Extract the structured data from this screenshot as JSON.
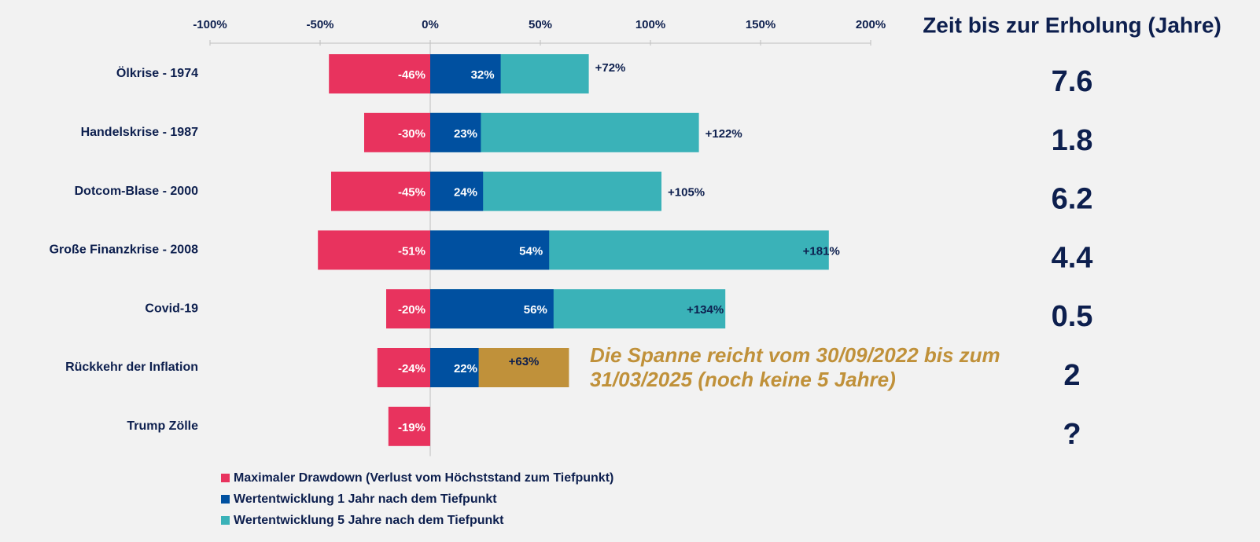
{
  "chart_data": {
    "type": "bar",
    "orientation": "horizontal",
    "categories": [
      "Ölkrise - 1974",
      "Handelskrise - 1987",
      "Dotcom-Blase - 2000",
      "Große Finanzkrise - 2008",
      "Covid-19",
      "Rückkehr der Inflation",
      "Trump Zölle"
    ],
    "series": [
      {
        "name": "Maximaler Drawdown (Verlust vom Höchststand zum Tiefpunkt)",
        "color": "#e8335e",
        "values": [
          -46,
          -30,
          -45,
          -51,
          -20,
          -24,
          -19
        ],
        "value_labels": [
          "-46%",
          "-30%",
          "-45%",
          "-51%",
          "-20%",
          "-24%",
          "-19%"
        ]
      },
      {
        "name": "Wertentwicklung 1 Jahr nach dem Tiefpunkt",
        "color": "#0050a0",
        "values": [
          32,
          23,
          24,
          54,
          56,
          22,
          null
        ],
        "value_labels": [
          "32%",
          "23%",
          "24%",
          "54%",
          "56%",
          "22%",
          null
        ]
      },
      {
        "name": "Wertentwicklung 5 Jahre nach dem Tiefpunkt",
        "color": "#3ab2b8",
        "colors": [
          "#3ab2b8",
          "#3ab2b8",
          "#3ab2b8",
          "#3ab2b8",
          "#3ab2b8",
          "#c0913a",
          "#3ab2b8"
        ],
        "values": [
          72,
          122,
          105,
          181,
          134,
          63,
          null
        ],
        "value_labels": [
          "+72%",
          "+122%",
          "+105%",
          "+181%",
          "+134%",
          "+63%",
          null
        ]
      }
    ],
    "xlim": [
      -100,
      200
    ],
    "xticks": [
      {
        "value": -100,
        "label": "-100%"
      },
      {
        "value": -50,
        "label": "-50%"
      },
      {
        "value": 0,
        "label": "0%"
      },
      {
        "value": 50,
        "label": "50%"
      },
      {
        "value": 100,
        "label": "100%"
      },
      {
        "value": 150,
        "label": "150%"
      },
      {
        "value": 200,
        "label": "200%"
      }
    ],
    "side_title": "Zeit bis zur Erholung (Jahre)",
    "side_values": [
      7.6,
      1.8,
      6.2,
      4.4,
      0.5,
      2,
      "?"
    ],
    "annotation": [
      "Die Spanne reicht vom 30/09/2022 bis zum",
      "31/03/2025 (noch keine 5 Jahre)"
    ],
    "annotation_color": "#c0913a"
  }
}
